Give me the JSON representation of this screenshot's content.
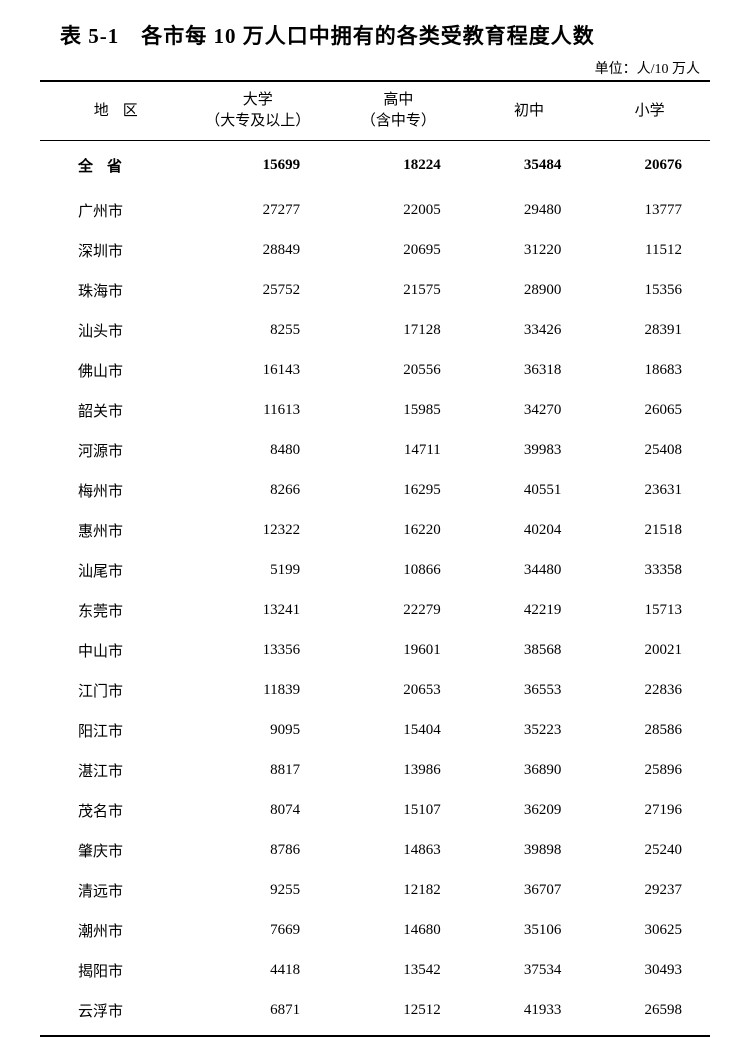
{
  "title": "表 5-1　各市每 10 万人口中拥有的各类受教育程度人数",
  "unit_label": "单位：人/10 万人",
  "columns": {
    "region": "地区",
    "university": "大学\n（大专及以上）",
    "highschool": "高中\n（含中专）",
    "middleschool": "初中",
    "elementary": "小学"
  },
  "total_row": {
    "label": "全省",
    "university": "15699",
    "highschool": "18224",
    "middleschool": "35484",
    "elementary": "20676"
  },
  "rows": [
    {
      "region": "广州市",
      "university": "27277",
      "highschool": "22005",
      "middleschool": "29480",
      "elementary": "13777"
    },
    {
      "region": "深圳市",
      "university": "28849",
      "highschool": "20695",
      "middleschool": "31220",
      "elementary": "11512"
    },
    {
      "region": "珠海市",
      "university": "25752",
      "highschool": "21575",
      "middleschool": "28900",
      "elementary": "15356"
    },
    {
      "region": "汕头市",
      "university": "8255",
      "highschool": "17128",
      "middleschool": "33426",
      "elementary": "28391"
    },
    {
      "region": "佛山市",
      "university": "16143",
      "highschool": "20556",
      "middleschool": "36318",
      "elementary": "18683"
    },
    {
      "region": "韶关市",
      "university": "11613",
      "highschool": "15985",
      "middleschool": "34270",
      "elementary": "26065"
    },
    {
      "region": "河源市",
      "university": "8480",
      "highschool": "14711",
      "middleschool": "39983",
      "elementary": "25408"
    },
    {
      "region": "梅州市",
      "university": "8266",
      "highschool": "16295",
      "middleschool": "40551",
      "elementary": "23631"
    },
    {
      "region": "惠州市",
      "university": "12322",
      "highschool": "16220",
      "middleschool": "40204",
      "elementary": "21518"
    },
    {
      "region": "汕尾市",
      "university": "5199",
      "highschool": "10866",
      "middleschool": "34480",
      "elementary": "33358"
    },
    {
      "region": "东莞市",
      "university": "13241",
      "highschool": "22279",
      "middleschool": "42219",
      "elementary": "15713"
    },
    {
      "region": "中山市",
      "university": "13356",
      "highschool": "19601",
      "middleschool": "38568",
      "elementary": "20021"
    },
    {
      "region": "江门市",
      "university": "11839",
      "highschool": "20653",
      "middleschool": "36553",
      "elementary": "22836"
    },
    {
      "region": "阳江市",
      "university": "9095",
      "highschool": "15404",
      "middleschool": "35223",
      "elementary": "28586"
    },
    {
      "region": "湛江市",
      "university": "8817",
      "highschool": "13986",
      "middleschool": "36890",
      "elementary": "25896"
    },
    {
      "region": "茂名市",
      "university": "8074",
      "highschool": "15107",
      "middleschool": "36209",
      "elementary": "27196"
    },
    {
      "region": "肇庆市",
      "university": "8786",
      "highschool": "14863",
      "middleschool": "39898",
      "elementary": "25240"
    },
    {
      "region": "清远市",
      "university": "9255",
      "highschool": "12182",
      "middleschool": "36707",
      "elementary": "29237"
    },
    {
      "region": "潮州市",
      "university": "7669",
      "highschool": "14680",
      "middleschool": "35106",
      "elementary": "30625"
    },
    {
      "region": "揭阳市",
      "university": "4418",
      "highschool": "13542",
      "middleschool": "37534",
      "elementary": "30493"
    },
    {
      "region": "云浮市",
      "university": "6871",
      "highschool": "12512",
      "middleschool": "41933",
      "elementary": "26598"
    }
  ]
}
